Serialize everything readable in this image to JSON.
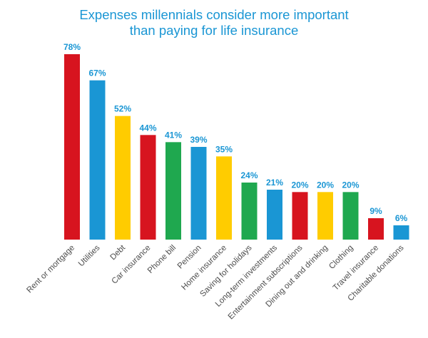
{
  "chart_data": {
    "type": "bar",
    "title_line1": "Expenses millennials consider more important",
    "title_line2": "than paying for life insurance",
    "xlabel": "",
    "ylabel": "",
    "ylim": [
      0,
      78
    ],
    "grid": false,
    "legend": "none",
    "value_suffix": "%",
    "categories": [
      "Rent or mortgage",
      "Utilities",
      "Debt",
      "Car insurance",
      "Phone bill",
      "Pension",
      "Home insurance",
      "Saving for holidays",
      "Long-term investments",
      "Entertainment subscriptions",
      "Dining out and drinking",
      "Clothing",
      "Travel insurance",
      "Charitable donations"
    ],
    "values": [
      78,
      67,
      52,
      44,
      41,
      39,
      35,
      24,
      21,
      20,
      20,
      20,
      9,
      6
    ],
    "colors": [
      "#d7141f",
      "#1a96d4",
      "#ffcc00",
      "#d7141f",
      "#1fa84f",
      "#1a96d4",
      "#ffcc00",
      "#1fa84f",
      "#1a96d4",
      "#d7141f",
      "#ffcc00",
      "#1fa84f",
      "#d7141f",
      "#1a96d4"
    ],
    "label_color": "#1a96d4",
    "title_color": "#1a96d4"
  }
}
